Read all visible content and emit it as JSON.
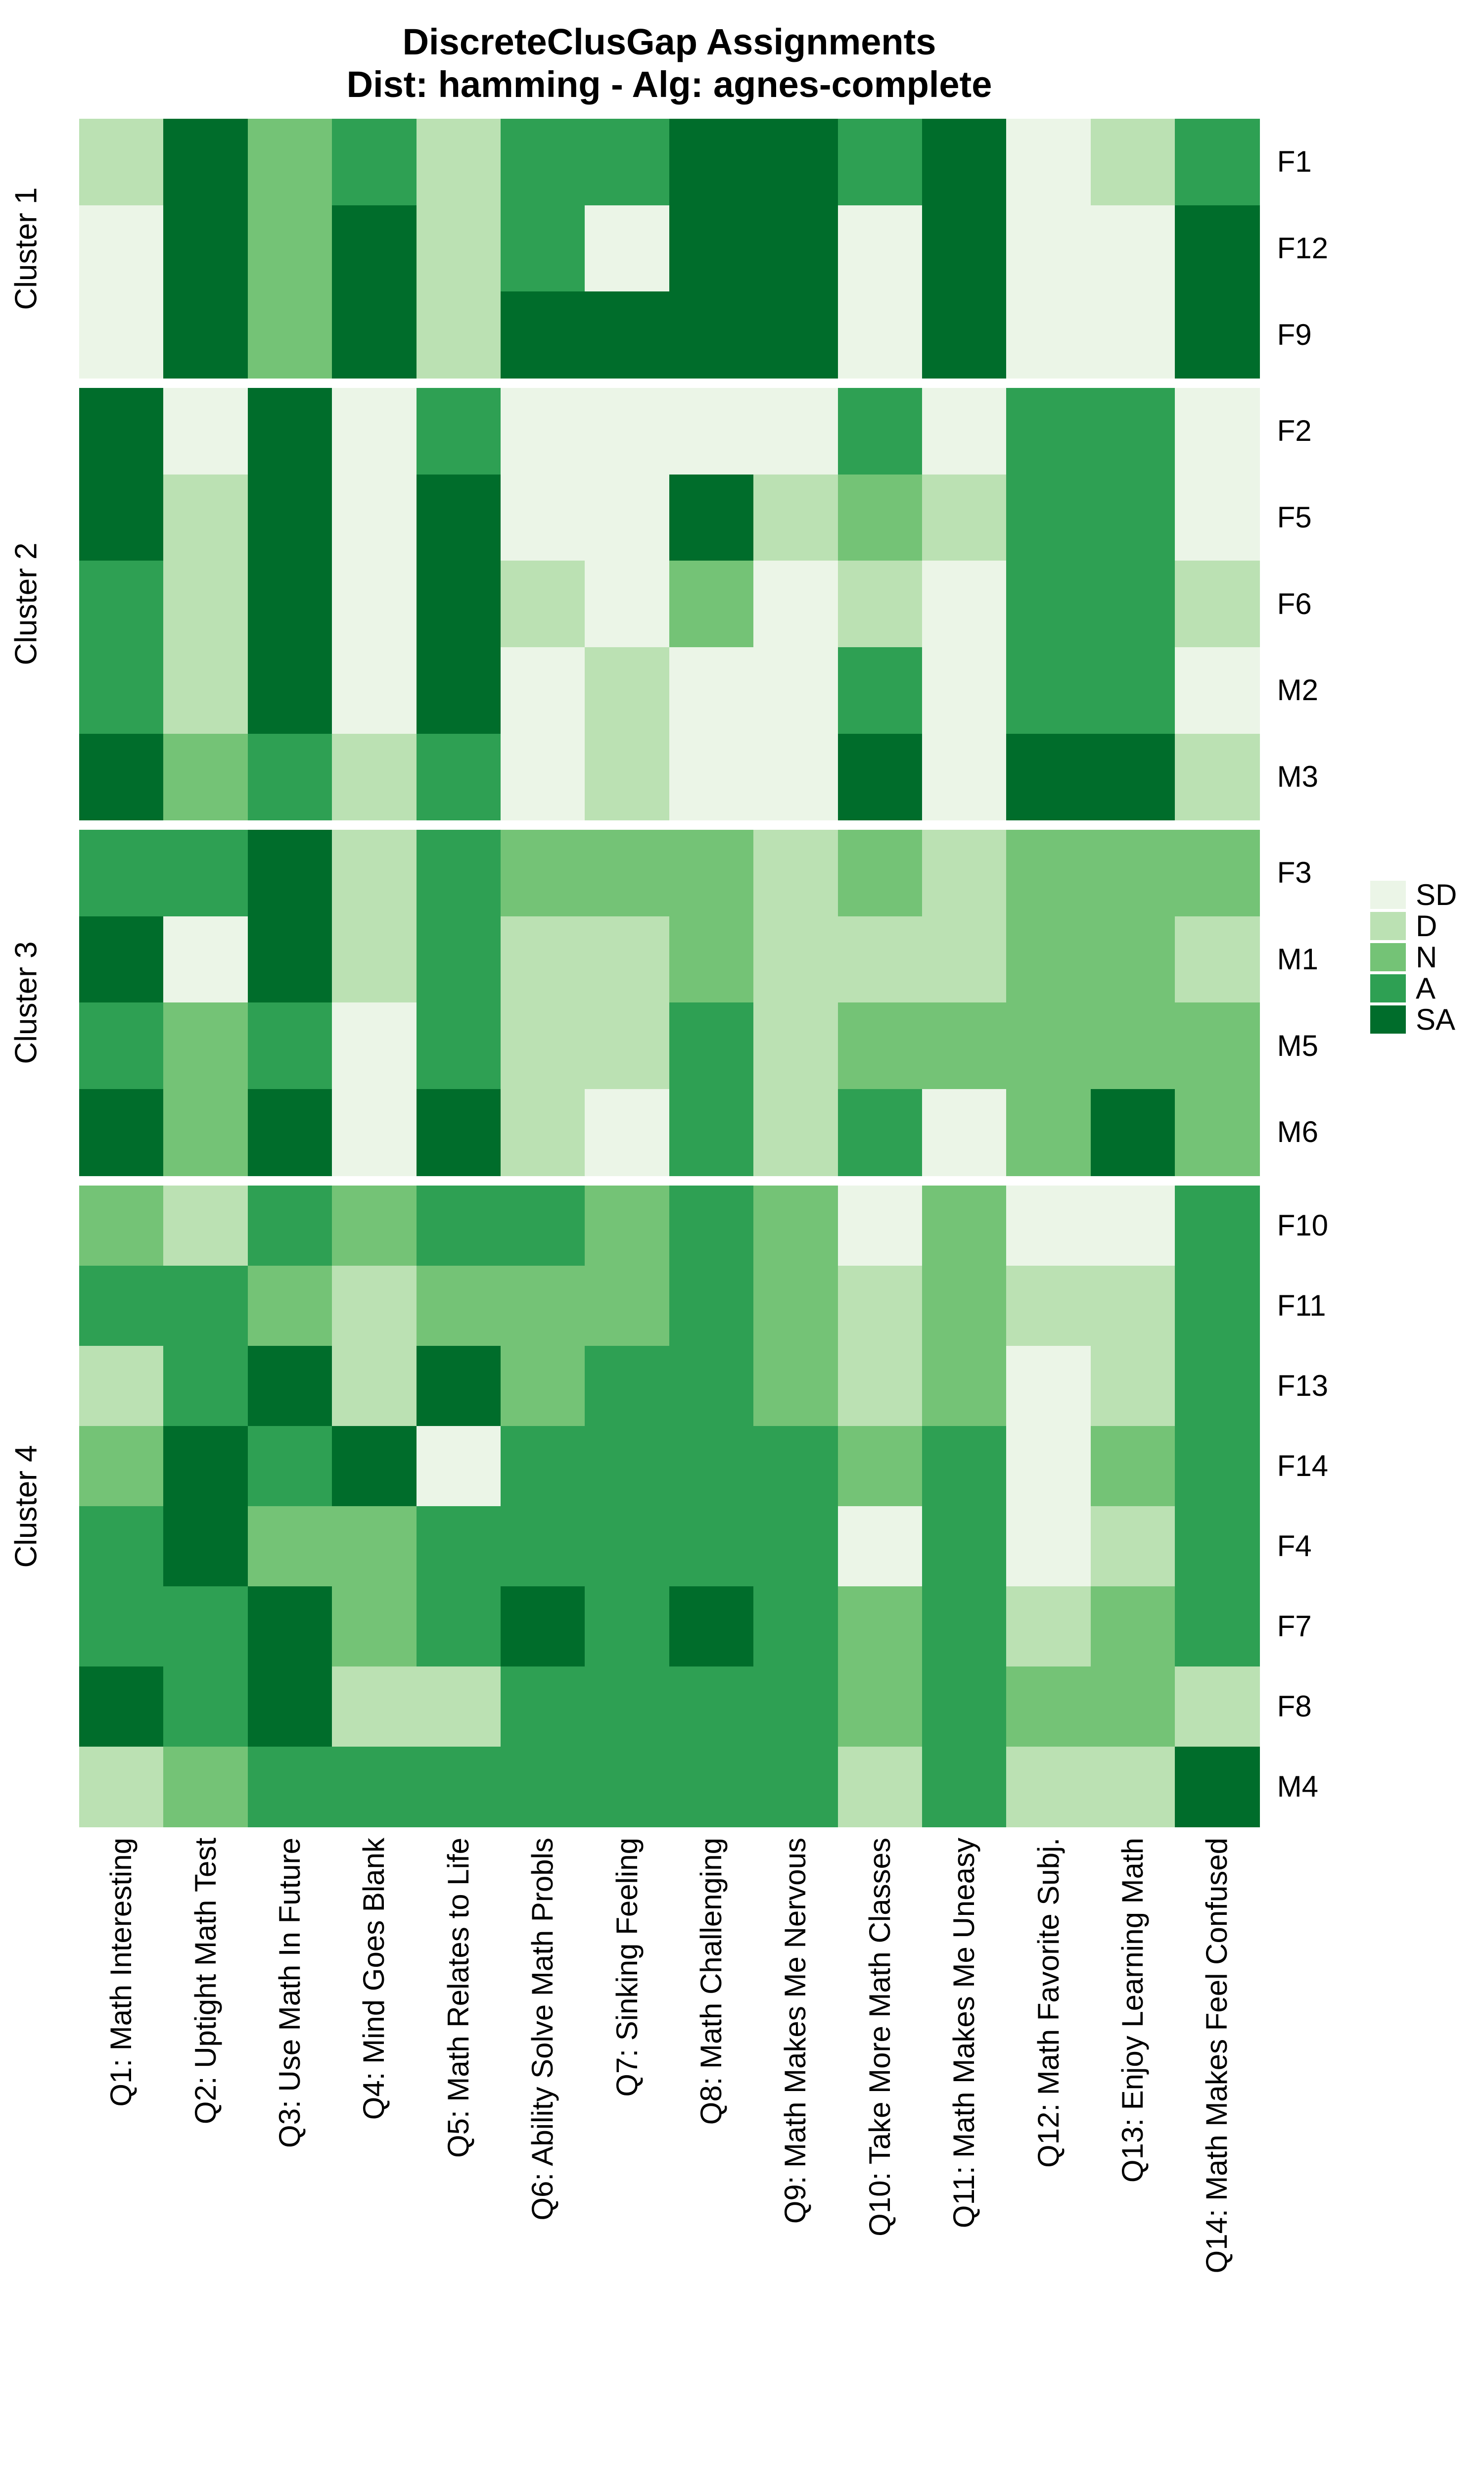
{
  "chart_data": {
    "type": "heatmap",
    "title": "DiscreteClusGap Assignments",
    "subtitle": "Dist: hamming - Alg: agnes-complete",
    "levels": [
      "SD",
      "D",
      "N",
      "A",
      "SA"
    ],
    "palette": {
      "SD": "#EBF5E7",
      "D": "#BBE1B3",
      "N": "#74C376",
      "A": "#2EA053",
      "SA": "#006D2B"
    },
    "legend": {
      "position": "right",
      "entries": [
        {
          "label": "SD",
          "color": "#EBF5E7"
        },
        {
          "label": "D",
          "color": "#BBE1B3"
        },
        {
          "label": "N",
          "color": "#74C376"
        },
        {
          "label": "A",
          "color": "#2EA053"
        },
        {
          "label": "SA",
          "color": "#006D2B"
        }
      ]
    },
    "x_labels": [
      "Q1: Math Interesting",
      "Q2: Uptight Math Test",
      "Q3: Use Math In Future",
      "Q4: Mind Goes Blank",
      "Q5: Math Relates to Life",
      "Q6: Ability Solve Math Probls",
      "Q7: Sinking Feeling",
      "Q8: Math Challenging",
      "Q9: Math Makes Me Nervous",
      "Q10: Take More Math Classes",
      "Q11: Math Makes Me Uneasy",
      "Q12: Math Favorite Subj.",
      "Q13: Enjoy Learning Math",
      "Q14: Math Makes Feel Confused"
    ],
    "clusters": [
      {
        "label": "Cluster 1",
        "rows": [
          {
            "label": "F1",
            "values": [
              "D",
              "SA",
              "N",
              "A",
              "D",
              "A",
              "A",
              "SA",
              "SA",
              "A",
              "SA",
              "SD",
              "D",
              "A"
            ]
          },
          {
            "label": "F12",
            "values": [
              "SD",
              "SA",
              "N",
              "SA",
              "D",
              "A",
              "SD",
              "SA",
              "SA",
              "SD",
              "SA",
              "SD",
              "SD",
              "SA"
            ]
          },
          {
            "label": "F9",
            "values": [
              "SD",
              "SA",
              "N",
              "SA",
              "D",
              "SA",
              "SA",
              "SA",
              "SA",
              "SD",
              "SA",
              "SD",
              "SD",
              "SA"
            ]
          }
        ]
      },
      {
        "label": "Cluster 2",
        "rows": [
          {
            "label": "F2",
            "values": [
              "SA",
              "SD",
              "SA",
              "SD",
              "A",
              "SD",
              "SD",
              "SD",
              "SD",
              "A",
              "SD",
              "A",
              "A",
              "SD"
            ]
          },
          {
            "label": "F5",
            "values": [
              "SA",
              "D",
              "SA",
              "SD",
              "SA",
              "SD",
              "SD",
              "SA",
              "D",
              "N",
              "D",
              "A",
              "A",
              "SD"
            ]
          },
          {
            "label": "F6",
            "values": [
              "A",
              "D",
              "SA",
              "SD",
              "SA",
              "D",
              "SD",
              "N",
              "SD",
              "D",
              "SD",
              "A",
              "A",
              "D"
            ]
          },
          {
            "label": "M2",
            "values": [
              "A",
              "D",
              "SA",
              "SD",
              "SA",
              "SD",
              "D",
              "SD",
              "SD",
              "A",
              "SD",
              "A",
              "A",
              "SD"
            ]
          },
          {
            "label": "M3",
            "values": [
              "SA",
              "N",
              "A",
              "D",
              "A",
              "SD",
              "D",
              "SD",
              "SD",
              "SA",
              "SD",
              "SA",
              "SA",
              "D"
            ]
          }
        ]
      },
      {
        "label": "Cluster 3",
        "rows": [
          {
            "label": "F3",
            "values": [
              "A",
              "A",
              "SA",
              "D",
              "A",
              "N",
              "N",
              "N",
              "D",
              "N",
              "D",
              "N",
              "N",
              "N"
            ]
          },
          {
            "label": "M1",
            "values": [
              "SA",
              "SD",
              "SA",
              "D",
              "A",
              "D",
              "D",
              "N",
              "D",
              "D",
              "D",
              "N",
              "N",
              "D"
            ]
          },
          {
            "label": "M5",
            "values": [
              "A",
              "N",
              "A",
              "SD",
              "A",
              "D",
              "D",
              "A",
              "D",
              "N",
              "N",
              "N",
              "N",
              "N"
            ]
          },
          {
            "label": "M6",
            "values": [
              "SA",
              "N",
              "SA",
              "SD",
              "SA",
              "D",
              "SD",
              "A",
              "D",
              "A",
              "SD",
              "N",
              "SA",
              "N"
            ]
          }
        ]
      },
      {
        "label": "Cluster 4",
        "rows": [
          {
            "label": "F10",
            "values": [
              "N",
              "D",
              "A",
              "N",
              "A",
              "A",
              "N",
              "A",
              "N",
              "SD",
              "N",
              "SD",
              "SD",
              "A"
            ]
          },
          {
            "label": "F11",
            "values": [
              "A",
              "A",
              "N",
              "D",
              "N",
              "N",
              "N",
              "A",
              "N",
              "D",
              "N",
              "D",
              "D",
              "A"
            ]
          },
          {
            "label": "F13",
            "values": [
              "D",
              "A",
              "SA",
              "D",
              "SA",
              "N",
              "A",
              "A",
              "N",
              "D",
              "N",
              "SD",
              "D",
              "A"
            ]
          },
          {
            "label": "F14",
            "values": [
              "N",
              "SA",
              "A",
              "SA",
              "SD",
              "A",
              "A",
              "A",
              "A",
              "N",
              "A",
              "SD",
              "N",
              "A"
            ]
          },
          {
            "label": "F4",
            "values": [
              "A",
              "SA",
              "N",
              "N",
              "A",
              "A",
              "A",
              "A",
              "A",
              "SD",
              "A",
              "SD",
              "D",
              "A"
            ]
          },
          {
            "label": "F7",
            "values": [
              "A",
              "A",
              "SA",
              "N",
              "A",
              "SA",
              "A",
              "SA",
              "A",
              "N",
              "A",
              "D",
              "N",
              "A"
            ]
          },
          {
            "label": "F8",
            "values": [
              "SA",
              "A",
              "SA",
              "D",
              "D",
              "A",
              "A",
              "A",
              "A",
              "N",
              "A",
              "N",
              "N",
              "D"
            ]
          },
          {
            "label": "M4",
            "values": [
              "D",
              "N",
              "A",
              "A",
              "A",
              "A",
              "A",
              "A",
              "A",
              "D",
              "A",
              "D",
              "D",
              "SA"
            ]
          }
        ]
      }
    ],
    "grid": false
  }
}
